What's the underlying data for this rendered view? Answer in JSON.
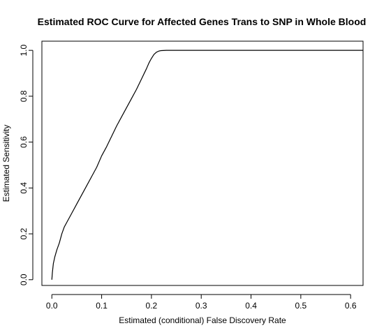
{
  "chart_data": {
    "type": "line",
    "title": "Estimated ROC Curve for Affected Genes Trans to SNP in Whole Blood",
    "xlabel": "Estimated (conditional) False Discovery Rate",
    "ylabel": "Estimated Sensitivity",
    "xlim": [
      -0.02,
      0.625
    ],
    "ylim": [
      -0.025,
      1.04
    ],
    "x_ticks": [
      0.0,
      0.1,
      0.2,
      0.3,
      0.4,
      0.5,
      0.6
    ],
    "x_tick_labels": [
      "0.0",
      "0.1",
      "0.2",
      "0.3",
      "0.4",
      "0.5",
      "0.6"
    ],
    "y_ticks": [
      0.0,
      0.2,
      0.4,
      0.6,
      0.8,
      1.0
    ],
    "y_tick_labels": [
      "0.0",
      "0.2",
      "0.4",
      "0.6",
      "0.8",
      "1.0"
    ],
    "grid": false,
    "series": [
      {
        "color": "#000000",
        "x": [
          0.0,
          0.001,
          0.003,
          0.006,
          0.01,
          0.015,
          0.02,
          0.025,
          0.03,
          0.04,
          0.05,
          0.06,
          0.07,
          0.08,
          0.09,
          0.1,
          0.11,
          0.12,
          0.13,
          0.14,
          0.15,
          0.16,
          0.17,
          0.18,
          0.19,
          0.195,
          0.2,
          0.205,
          0.21,
          0.215,
          0.22,
          0.23,
          0.25,
          0.3,
          0.4,
          0.5,
          0.625
        ],
        "y": [
          0.0,
          0.03,
          0.07,
          0.1,
          0.13,
          0.16,
          0.2,
          0.23,
          0.25,
          0.29,
          0.33,
          0.37,
          0.41,
          0.45,
          0.49,
          0.54,
          0.58,
          0.625,
          0.67,
          0.71,
          0.75,
          0.79,
          0.83,
          0.875,
          0.92,
          0.945,
          0.965,
          0.982,
          0.992,
          0.997,
          0.999,
          1.0,
          1.0,
          1.0,
          1.0,
          1.0,
          1.0
        ]
      }
    ]
  }
}
